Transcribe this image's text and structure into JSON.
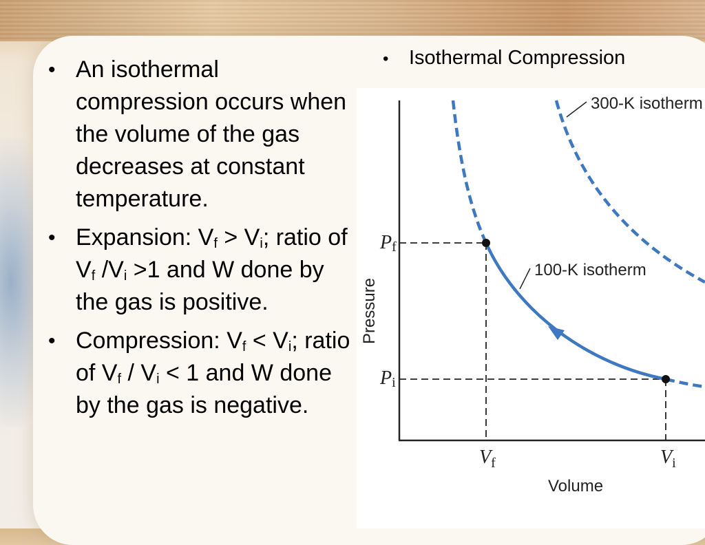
{
  "bullets": [
    {
      "text": "An isothermal compression occurs when the volume of the gas decreases at constant temperature."
    },
    {
      "prefix": "Expansion:  V",
      "s1": "f",
      "mid1": " > V",
      "s2": "i",
      "mid2": "; ratio of V",
      "s3": "f",
      "mid3": " /V",
      "s4": "i",
      "suffix": " >1 and W done by the gas is positive."
    },
    {
      "prefix": "Compression: V",
      "s1": "f",
      "mid1": " < V",
      "s2": "i",
      "mid2": "; ratio of V",
      "s3": "f",
      "mid3": " / V",
      "s4": "i",
      "suffix": " < 1 and W done by the gas is negative."
    }
  ],
  "figure": {
    "title": "Isothermal Compression",
    "isotherm_300_label": "300-K isotherm",
    "isotherm_100_label": "100-K isotherm",
    "y_axis_label": "Pressure",
    "x_axis_label": "Volume",
    "pf_label": "P",
    "pf_sub": "f",
    "pi_label": "P",
    "pi_sub": "i",
    "vf_label": "V",
    "vf_sub": "f",
    "vi_label": "V",
    "vi_sub": "i",
    "curve_color": "#3d78c0"
  }
}
